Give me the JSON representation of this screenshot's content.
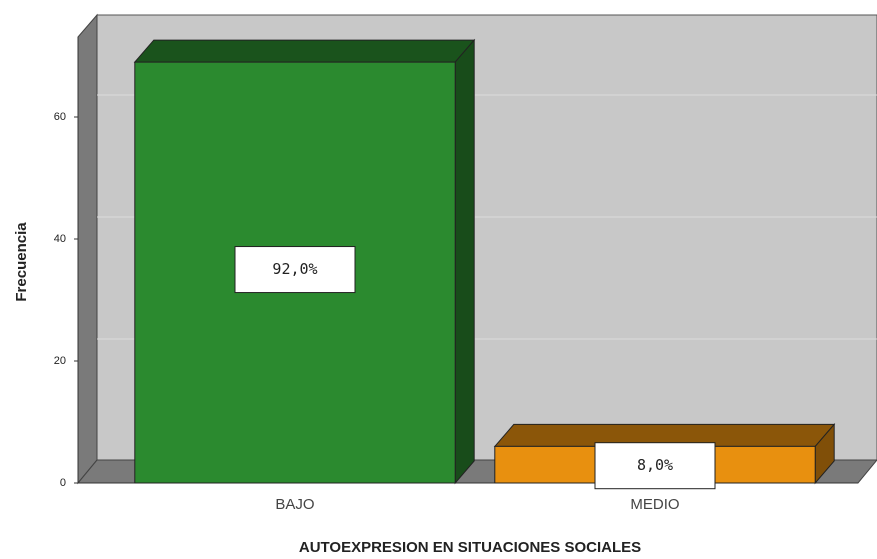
{
  "chart_data": {
    "type": "bar3d",
    "x_label": "AUTOEXPRESION EN SITUACIONES SOCIALES",
    "y_label": "Frecuencia",
    "categories": [
      "BAJO",
      "MEDIO"
    ],
    "values": [
      69,
      6
    ],
    "annotations": [
      "92,0%",
      "8,0%"
    ],
    "colors": [
      "#2b8a2f",
      "#e8900f"
    ],
    "ylim": [
      0,
      70
    ],
    "yticks": [
      0,
      20,
      40,
      60
    ],
    "grid": true
  }
}
